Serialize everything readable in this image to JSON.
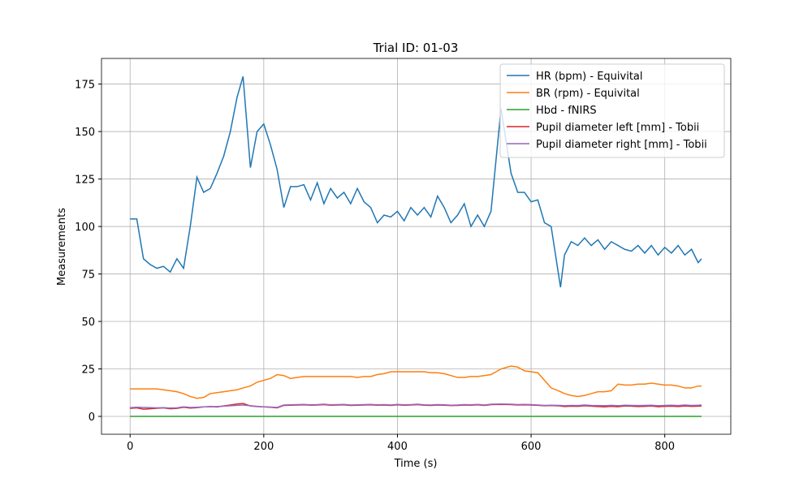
{
  "chart_data": {
    "type": "line",
    "title": "Trial ID: 01-03",
    "x_label": "Time (s)",
    "y_label": "Measurements",
    "x": [
      0,
      10,
      20,
      30,
      40,
      50,
      60,
      70,
      80,
      90,
      100,
      110,
      120,
      130,
      140,
      150,
      160,
      169,
      180,
      190,
      200,
      210,
      220,
      230,
      240,
      250,
      260,
      270,
      280,
      290,
      300,
      310,
      320,
      330,
      340,
      350,
      360,
      370,
      380,
      390,
      400,
      410,
      420,
      430,
      440,
      450,
      460,
      470,
      480,
      490,
      500,
      510,
      520,
      530,
      540,
      555,
      570,
      580,
      590,
      600,
      610,
      620,
      630,
      644,
      650,
      660,
      670,
      680,
      690,
      700,
      710,
      720,
      730,
      740,
      750,
      760,
      770,
      780,
      790,
      800,
      810,
      820,
      830,
      840,
      850,
      855
    ],
    "series": [
      {
        "name": "HR (bpm) - Equivital",
        "color": "#1f77b4",
        "values": [
          104,
          104,
          83,
          80,
          78,
          79,
          76,
          83,
          78,
          100,
          126,
          118,
          120,
          128,
          137,
          150,
          168,
          179,
          131,
          150,
          154,
          143,
          130,
          110,
          121,
          121,
          122,
          114,
          123,
          112,
          120,
          115,
          118,
          112,
          120,
          113,
          110,
          102,
          106,
          105,
          108,
          103,
          110,
          106,
          110,
          105,
          116,
          110,
          102,
          106,
          112,
          100,
          106,
          100,
          108,
          162,
          128,
          118,
          118,
          113,
          114,
          102,
          100,
          68,
          85,
          92,
          90,
          94,
          90,
          93,
          88,
          92,
          90,
          88,
          87,
          90,
          86,
          90,
          85,
          89,
          86,
          90,
          85,
          88,
          81,
          83
        ]
      },
      {
        "name": "BR (rpm) - Equivital",
        "color": "#ff7f0e",
        "values": [
          14.5,
          14.5,
          14.5,
          14.5,
          14.5,
          14,
          13.5,
          13,
          12,
          10.5,
          9.5,
          10,
          12,
          12.5,
          13,
          13.5,
          14,
          15,
          16,
          18,
          19,
          20,
          22,
          21.5,
          20,
          20.5,
          21,
          21,
          21,
          21,
          21,
          21,
          21,
          21,
          20.5,
          21,
          21,
          22,
          22.5,
          23.5,
          23.5,
          23.5,
          23.5,
          23.5,
          23.5,
          23,
          23,
          22.5,
          21.5,
          20.5,
          20.5,
          21,
          21,
          21.5,
          22,
          25,
          26.5,
          26,
          24,
          23.5,
          23,
          19,
          15,
          13,
          12,
          11,
          10.5,
          11,
          12,
          13,
          13,
          13.5,
          17,
          16.5,
          16.5,
          17,
          17,
          17.5,
          17,
          16.5,
          16.5,
          16,
          15,
          15,
          16,
          16
        ]
      },
      {
        "name": "Hbd - fNIRS",
        "color": "#2ca02c",
        "values": [
          0,
          0,
          0,
          0,
          0,
          0,
          0,
          0,
          0,
          0,
          0,
          0,
          0,
          0,
          0,
          0,
          0,
          0,
          0,
          0,
          0,
          0,
          0,
          0,
          0,
          0,
          0,
          0,
          0,
          0,
          0,
          0,
          0,
          0,
          0,
          0,
          0,
          0,
          0,
          0,
          0,
          0,
          0,
          0,
          0,
          0,
          0,
          0,
          0,
          0,
          0,
          0,
          0,
          0,
          0,
          0,
          0,
          0,
          0,
          0,
          0,
          0,
          0,
          0,
          0,
          0,
          0,
          0,
          0,
          0,
          0,
          0,
          0,
          0,
          0,
          0,
          0,
          0,
          0,
          0,
          0,
          0,
          0,
          0,
          0,
          0
        ]
      },
      {
        "name": "Pupil diameter left [mm] - Tobii",
        "color": "#d62728",
        "values": [
          4.2,
          4.5,
          3.8,
          4.0,
          4.3,
          4.5,
          4.0,
          4.2,
          4.8,
          4.4,
          4.6,
          5.0,
          5.2,
          5.0,
          5.5,
          6.0,
          6.5,
          6.8,
          5.5,
          5.2,
          5.0,
          4.8,
          4.5,
          5.8,
          5.9,
          6.0,
          6.1,
          5.9,
          6.0,
          6.2,
          5.9,
          6.0,
          6.1,
          5.8,
          5.9,
          6.0,
          6.1,
          5.9,
          6.0,
          5.8,
          6.1,
          5.9,
          6.0,
          6.2,
          5.9,
          5.8,
          6.0,
          5.9,
          5.7,
          5.8,
          6.0,
          5.9,
          6.1,
          5.8,
          6.2,
          6.3,
          6.2,
          6.0,
          6.1,
          6.0,
          5.8,
          5.6,
          5.7,
          5.5,
          5.2,
          5.4,
          5.3,
          5.6,
          5.4,
          5.2,
          5.0,
          5.3,
          5.1,
          5.5,
          5.4,
          5.2,
          5.3,
          5.5,
          5.1,
          5.3,
          5.4,
          5.2,
          5.5,
          5.3,
          5.4,
          5.5
        ]
      },
      {
        "name": "Pupil diameter right [mm] - Tobii",
        "color": "#9467bd",
        "values": [
          4.6,
          4.8,
          4.7,
          4.6,
          4.5,
          4.6,
          4.4,
          4.5,
          5.0,
          4.7,
          4.8,
          5.0,
          5.1,
          5.2,
          5.4,
          5.6,
          5.8,
          6.0,
          5.6,
          5.3,
          5.0,
          4.9,
          4.7,
          6.0,
          6.1,
          6.2,
          6.3,
          6.1,
          6.2,
          6.4,
          6.1,
          6.2,
          6.3,
          6.0,
          6.1,
          6.2,
          6.3,
          6.1,
          6.2,
          6.0,
          6.3,
          6.1,
          6.2,
          6.4,
          6.1,
          6.0,
          6.2,
          6.1,
          5.9,
          6.0,
          6.2,
          6.1,
          6.3,
          6.0,
          6.4,
          6.5,
          6.4,
          6.2,
          6.3,
          6.2,
          6.0,
          5.8,
          5.9,
          5.8,
          5.6,
          5.8,
          5.7,
          6.0,
          5.8,
          5.7,
          5.6,
          5.8,
          5.6,
          5.9,
          5.8,
          5.7,
          5.8,
          5.9,
          5.6,
          5.8,
          5.9,
          5.7,
          6.0,
          5.8,
          5.9,
          6.0
        ]
      }
    ],
    "xlim": [
      -42.8,
      898.8
    ],
    "ylim": [
      -9.4,
      188.5
    ],
    "xticks": [
      0,
      200,
      400,
      600,
      800
    ],
    "yticks": [
      0,
      25,
      50,
      75,
      100,
      125,
      150,
      175
    ],
    "grid": true,
    "legend_position": "upper right"
  }
}
